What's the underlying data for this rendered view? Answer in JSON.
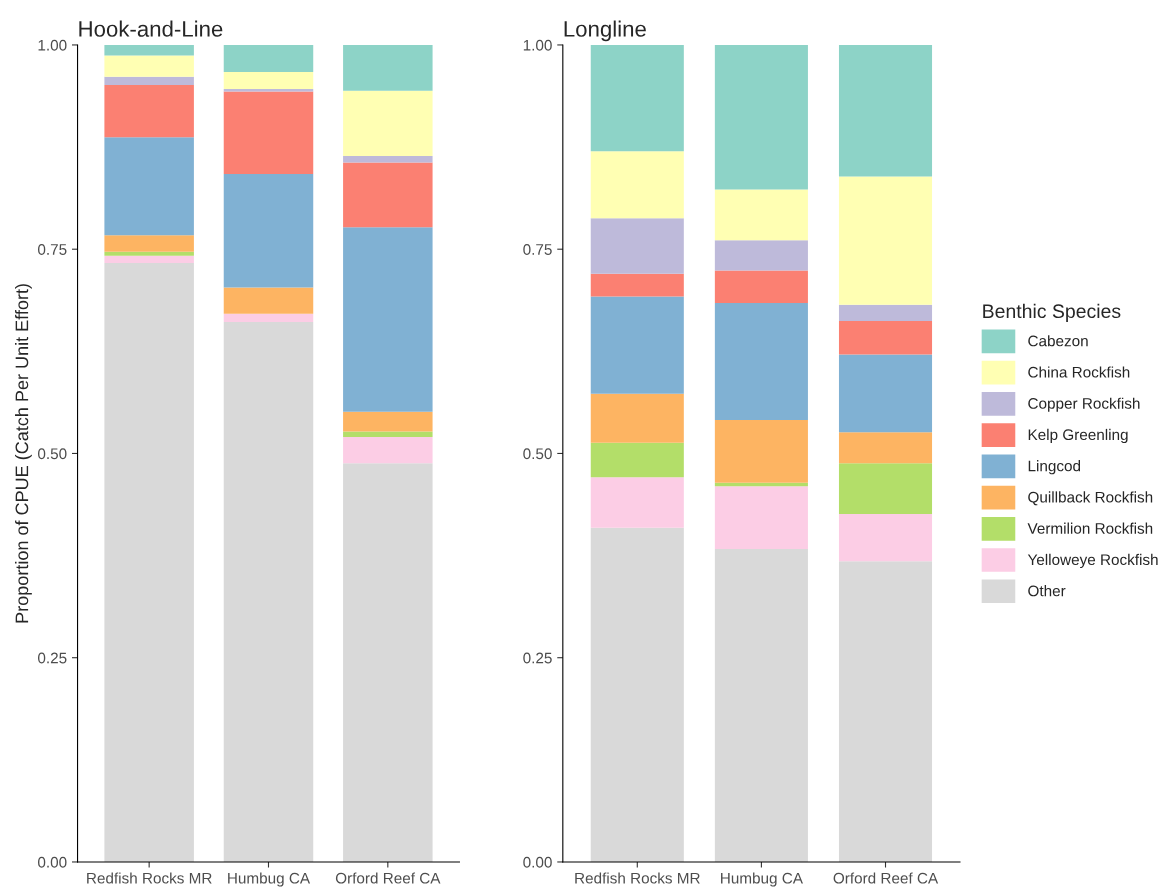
{
  "chart_data": [
    {
      "type": "bar",
      "title": "Hook-and-Line",
      "ylabel": "Proportion of CPUE (Catch Per Unit Effort)",
      "stacked": true,
      "legend": false,
      "grid": false,
      "categories": [
        "Redfish Rocks MR",
        "Humbug CA",
        "Orford Reef CA"
      ],
      "ylim": [
        0,
        1
      ],
      "yticks": [
        {
          "value": 0,
          "label": "0.00"
        },
        {
          "value": 0.25,
          "label": "0.25"
        },
        {
          "value": 0.5,
          "label": "0.50"
        },
        {
          "value": 0.75,
          "label": "0.75"
        },
        {
          "value": 1,
          "label": "1.00"
        }
      ],
      "series": [
        {
          "color": "#d9d9d9",
          "values": [
            0.733,
            0.661,
            0.488
          ]
        },
        {
          "color": "#fccde5",
          "values": [
            0.009,
            0.01,
            0.032
          ]
        },
        {
          "color": "#b3de69",
          "values": [
            0.005,
            0,
            0.007
          ]
        },
        {
          "color": "#fdb462",
          "values": [
            0.02,
            0.032,
            0.024
          ]
        },
        {
          "color": "#80b1d3",
          "values": [
            0.12,
            0.139,
            0.226
          ]
        },
        {
          "color": "#fb8072",
          "values": [
            0.064,
            0.101,
            0.079
          ]
        },
        {
          "color": "#bebada",
          "values": [
            0.01,
            0.003,
            0.008
          ]
        },
        {
          "color": "#ffffb3",
          "values": [
            0.026,
            0.021,
            0.08
          ]
        },
        {
          "color": "#8dd3c7",
          "values": [
            0.013,
            0.033,
            0.056
          ]
        }
      ]
    },
    {
      "type": "bar",
      "title": "Longline",
      "stacked": true,
      "legend": "right",
      "legend_title": "Benthic Species",
      "grid": false,
      "categories": [
        "Redfish Rocks MR",
        "Humbug CA",
        "Orford Reef CA"
      ],
      "ylim": [
        0,
        1
      ],
      "yticks": [
        {
          "value": 0,
          "label": "0.00"
        },
        {
          "value": 0.25,
          "label": "0.25"
        },
        {
          "value": 0.5,
          "label": "0.50"
        },
        {
          "value": 0.75,
          "label": "0.75"
        },
        {
          "value": 1,
          "label": "1.00"
        }
      ],
      "series": [
        {
          "name": "Other",
          "color": "#d9d9d9",
          "values": [
            0.409,
            0.383,
            0.368
          ]
        },
        {
          "name": "Yelloweye Rockfish",
          "color": "#fccde5",
          "values": [
            0.062,
            0.077,
            0.058
          ]
        },
        {
          "name": "Vermilion Rockfish",
          "color": "#b3de69",
          "values": [
            0.042,
            0.004,
            0.062
          ]
        },
        {
          "name": "Quillback Rockfish",
          "color": "#fdb462",
          "values": [
            0.06,
            0.077,
            0.038
          ]
        },
        {
          "name": "Lingcod",
          "color": "#80b1d3",
          "values": [
            0.119,
            0.143,
            0.095
          ]
        },
        {
          "name": "Kelp Greenling",
          "color": "#fb8072",
          "values": [
            0.028,
            0.04,
            0.041
          ]
        },
        {
          "name": "Copper Rockfish",
          "color": "#bebada",
          "values": [
            0.068,
            0.037,
            0.02
          ]
        },
        {
          "name": "China Rockfish",
          "color": "#ffffb3",
          "values": [
            0.082,
            0.062,
            0.157
          ]
        },
        {
          "name": "Cabezon",
          "color": "#8dd3c7",
          "values": [
            0.13,
            0.177,
            0.161
          ]
        }
      ]
    }
  ]
}
